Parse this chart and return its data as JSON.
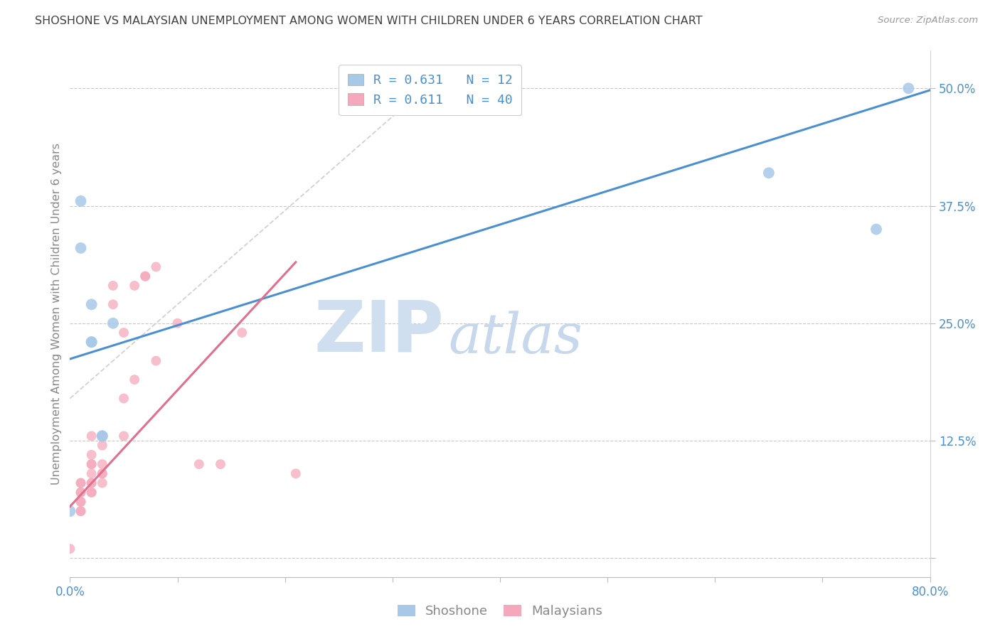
{
  "title": "SHOSHONE VS MALAYSIAN UNEMPLOYMENT AMONG WOMEN WITH CHILDREN UNDER 6 YEARS CORRELATION CHART",
  "source": "Source: ZipAtlas.com",
  "ylabel": "Unemployment Among Women with Children Under 6 years",
  "xlim": [
    0.0,
    0.8
  ],
  "ylim": [
    -0.02,
    0.54
  ],
  "plot_ylim": [
    0.0,
    0.5
  ],
  "yticks": [
    0.0,
    0.125,
    0.25,
    0.375,
    0.5
  ],
  "ytick_labels": [
    "",
    "12.5%",
    "25.0%",
    "37.5%",
    "50.0%"
  ],
  "xticks": [
    0.0,
    0.1,
    0.2,
    0.3,
    0.4,
    0.5,
    0.6,
    0.7,
    0.8
  ],
  "xtick_labels": [
    "0.0%",
    "",
    "",
    "",
    "",
    "",
    "",
    "",
    "80.0%"
  ],
  "shoshone_x": [
    0.01,
    0.01,
    0.02,
    0.02,
    0.02,
    0.03,
    0.03,
    0.04,
    0.0,
    0.65,
    0.75,
    0.78
  ],
  "shoshone_y": [
    0.38,
    0.33,
    0.27,
    0.23,
    0.23,
    0.13,
    0.13,
    0.25,
    0.05,
    0.41,
    0.35,
    0.5
  ],
  "malaysian_x": [
    0.0,
    0.01,
    0.01,
    0.01,
    0.01,
    0.01,
    0.01,
    0.01,
    0.01,
    0.02,
    0.02,
    0.02,
    0.02,
    0.02,
    0.02,
    0.02,
    0.02,
    0.02,
    0.03,
    0.03,
    0.03,
    0.03,
    0.03,
    0.03,
    0.04,
    0.04,
    0.05,
    0.05,
    0.05,
    0.06,
    0.06,
    0.07,
    0.07,
    0.08,
    0.08,
    0.1,
    0.12,
    0.14,
    0.16,
    0.21
  ],
  "malaysian_y": [
    0.01,
    0.05,
    0.05,
    0.06,
    0.06,
    0.07,
    0.07,
    0.08,
    0.08,
    0.07,
    0.07,
    0.08,
    0.08,
    0.09,
    0.1,
    0.1,
    0.11,
    0.13,
    0.08,
    0.09,
    0.09,
    0.1,
    0.12,
    0.13,
    0.27,
    0.29,
    0.13,
    0.17,
    0.24,
    0.19,
    0.29,
    0.3,
    0.3,
    0.21,
    0.31,
    0.25,
    0.1,
    0.1,
    0.24,
    0.09
  ],
  "shoshone_color": "#A8C8E8",
  "malaysian_color": "#F5A8BC",
  "shoshone_line_color": "#4A90D0",
  "malaysian_line_color": "#E07090",
  "shoshone_R": 0.631,
  "shoshone_N": 12,
  "malaysian_R": 0.611,
  "malaysian_N": 40,
  "grid_color": "#C8C8C8",
  "axis_color": "#BBBBBB",
  "title_color": "#404040",
  "label_color": "#888888",
  "tick_color": "#4A90D0",
  "watermark_zip_color": "#D0DFF0",
  "watermark_atlas_color": "#C8D8EC",
  "background_color": "#FFFFFF",
  "ref_line_color": "#CCCCCC",
  "shoshone_line_x": [
    0.0,
    0.8
  ],
  "shoshone_line_y": [
    0.212,
    0.498
  ],
  "malaysian_line_x": [
    0.0,
    0.21
  ],
  "malaysian_line_y": [
    0.055,
    0.315
  ]
}
